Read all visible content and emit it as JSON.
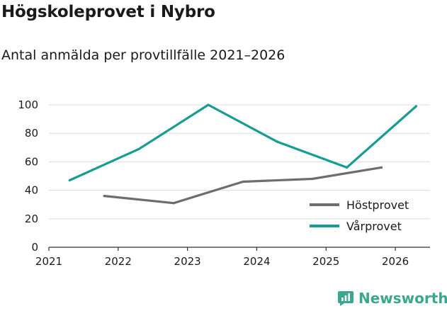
{
  "header": {
    "title": "Högskoleprovet i Nybro",
    "subtitle": "Antal anmälda per provtillfälle 2021–2026"
  },
  "brand": {
    "name": "Newsworthy",
    "color": "#3aa88e"
  },
  "chart_data": {
    "type": "line",
    "title": "Högskoleprovet i Nybro",
    "subtitle": "Antal anmälda per provtillfälle 2021–2026",
    "xlabel": "",
    "ylabel": "",
    "xlim": [
      2021,
      2026.5
    ],
    "ylim": [
      0,
      100
    ],
    "x_ticks": [
      "2021",
      "2022",
      "2023",
      "2024",
      "2025",
      "2026"
    ],
    "y_ticks": [
      0,
      20,
      40,
      60,
      80,
      100
    ],
    "grid": "horizontal",
    "legend_position": "bottom-right",
    "series": [
      {
        "name": "Höstprovet",
        "color": "#6d6d70",
        "points": [
          {
            "x": 2021.8,
            "y": 36
          },
          {
            "x": 2022.8,
            "y": 31
          },
          {
            "x": 2023.8,
            "y": 46
          },
          {
            "x": 2024.8,
            "y": 48
          },
          {
            "x": 2025.8,
            "y": 56
          }
        ]
      },
      {
        "name": "Vårprovet",
        "color": "#169c92",
        "points": [
          {
            "x": 2021.3,
            "y": 47
          },
          {
            "x": 2022.3,
            "y": 69
          },
          {
            "x": 2023.3,
            "y": 100
          },
          {
            "x": 2024.3,
            "y": 74
          },
          {
            "x": 2025.3,
            "y": 56
          },
          {
            "x": 2026.3,
            "y": 99
          }
        ]
      }
    ]
  }
}
